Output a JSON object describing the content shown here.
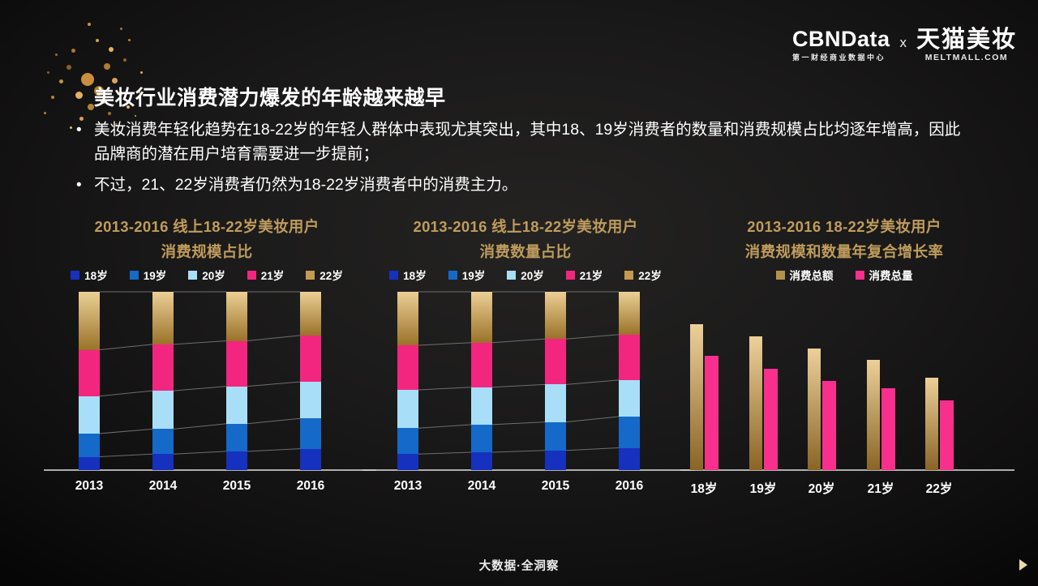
{
  "page": {
    "footer": "大数据·全洞察"
  },
  "header": {
    "logo_cbndata": "CBNData",
    "logo_cbndata_sub": "第一财经商业数据中心",
    "logo_separator": "x",
    "logo_tmall": "天猫美妆",
    "logo_tmall_sub": "MELTMALL.COM",
    "title": "美妆行业消费潜力爆发的年龄越来越早",
    "bullets": [
      "美妆消费年轻化趋势在18-22岁的年轻人群体中表现尤其突出，其中18、19岁消费者的数量和消费规模占比均逐年增高，因此品牌商的潜在用户培育需要进一步提前；",
      "不过，21、22岁消费者仍然为18-22岁消费者中的消费主力。"
    ]
  },
  "colors": {
    "chart_title_gold": "#bf9c5c",
    "age18_dark_blue": "#1631bd",
    "age19_blue": "#1569c9",
    "age20_light_blue": "#a9def8",
    "age21_pink": "#f3267f",
    "age22_gold": "#c49952",
    "connector_line_gray": "#6e6e6e",
    "axis_gray": "#c9c9c9"
  },
  "chart_data": [
    {
      "type": "bar",
      "subtype": "stacked-100",
      "title": "2013-2016 线上18-22岁美妆用户",
      "subtitle": "消费规模占比",
      "categories": [
        "2013",
        "2014",
        "2015",
        "2016"
      ],
      "series": [
        {
          "name": "18岁",
          "color": "#1631bd",
          "values": [
            7.5,
            9,
            10.5,
            12
          ]
        },
        {
          "name": "19岁",
          "color": "#1569c9",
          "values": [
            13,
            14,
            15.5,
            17
          ]
        },
        {
          "name": "20岁",
          "color": "#a9def8",
          "values": [
            21,
            21.5,
            21,
            20.5
          ]
        },
        {
          "name": "21岁",
          "color": "#f3267f",
          "values": [
            26,
            26,
            25.5,
            26
          ]
        },
        {
          "name": "22岁",
          "color": "#c49952",
          "gradient": [
            "#eccf96",
            "#9a7229"
          ],
          "values": [
            32.5,
            29.5,
            27.5,
            24.5
          ]
        }
      ],
      "unit": "%",
      "ylim": [
        0,
        100
      ],
      "grid": false,
      "legend_position": "top",
      "note": "100% stacked bars; segment percentages estimated from bar heights, no data labels shown"
    },
    {
      "type": "bar",
      "subtype": "stacked-100",
      "title": "2013-2016 线上18-22岁美妆用户",
      "subtitle": "消费数量占比",
      "categories": [
        "2013",
        "2014",
        "2015",
        "2016"
      ],
      "series": [
        {
          "name": "18岁",
          "color": "#1631bd",
          "values": [
            9,
            10,
            11,
            12.5
          ]
        },
        {
          "name": "19岁",
          "color": "#1569c9",
          "values": [
            14.5,
            15.5,
            16,
            17.5
          ]
        },
        {
          "name": "20岁",
          "color": "#a9def8",
          "values": [
            21.5,
            21,
            21,
            20.5
          ]
        },
        {
          "name": "21岁",
          "color": "#f3267f",
          "values": [
            25,
            25,
            25.5,
            25.5
          ]
        },
        {
          "name": "22岁",
          "color": "#c49952",
          "gradient": [
            "#eccf96",
            "#9a7229"
          ],
          "values": [
            30,
            28.5,
            26.5,
            24
          ]
        }
      ],
      "unit": "%",
      "ylim": [
        0,
        100
      ],
      "grid": false,
      "legend_position": "top",
      "note": "100% stacked bars; segment percentages estimated from bar heights, no data labels shown"
    },
    {
      "type": "bar",
      "subtype": "grouped",
      "title": "2013-2016 18-22岁美妆用户",
      "subtitle": "消费规模和数量年复合增长率",
      "categories": [
        "18岁",
        "19岁",
        "20岁",
        "21岁",
        "22岁"
      ],
      "series": [
        {
          "name": "消费总额",
          "color": "#b2924e",
          "gradient": [
            "#ecd09a",
            "#8a6426"
          ],
          "values": [
            82,
            75,
            68,
            62,
            52
          ]
        },
        {
          "name": "消费总量",
          "color": "#f92f8e",
          "values": [
            64,
            57,
            50,
            46,
            39
          ]
        }
      ],
      "ylim": [
        0,
        100
      ],
      "grid": false,
      "legend_position": "top",
      "note": "no axis or value labels shown; values are estimated relative bar heights in % of plot height"
    }
  ]
}
